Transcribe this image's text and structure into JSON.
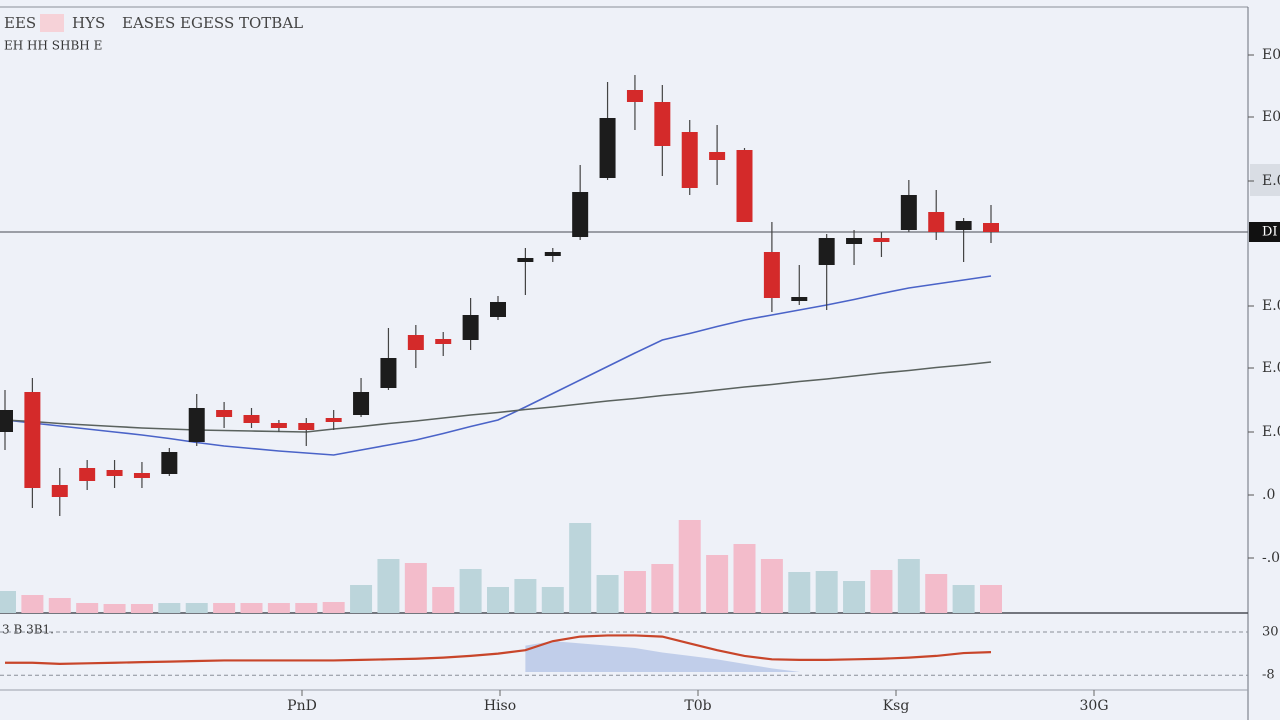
{
  "chart_data": {
    "type": "candlestick",
    "header": [
      "EES",
      "HYS",
      "EASES EGESS TOTBAL"
    ],
    "subheader": "EH HH SHBH E",
    "up_color": "#1c1c1c",
    "down_color": "#d42a2a",
    "volume_up_color": "#bcd5db",
    "volume_down_color": "#f3bccb",
    "ylim": [
      0,
      120
    ],
    "yticks": [
      {
        "value": 109,
        "label": "E0"
      },
      {
        "value": 96.6,
        "label": "E0"
      },
      {
        "value": 83.8,
        "label": "E.0"
      },
      {
        "value": 58.8,
        "label": "E.0"
      },
      {
        "value": 46.4,
        "label": "E.0"
      },
      {
        "value": 33.6,
        "label": "E.0"
      },
      {
        "value": 21,
        "label": ".0"
      },
      {
        "value": 8.4,
        "label": "-.0"
      }
    ],
    "price_line": {
      "value": 73.6,
      "label": "DI"
    },
    "candles": [
      {
        "open": 33.6,
        "high": 42,
        "low": 30,
        "close": 38
      },
      {
        "open": 41.6,
        "high": 44.4,
        "low": 18.4,
        "close": 22.4
      },
      {
        "open": 23,
        "high": 26.4,
        "low": 16.8,
        "close": 20.6
      },
      {
        "open": 26.4,
        "high": 28,
        "low": 22,
        "close": 23.8
      },
      {
        "open": 26,
        "high": 28,
        "low": 22.4,
        "close": 24.8
      },
      {
        "open": 25.4,
        "high": 27.6,
        "low": 22.4,
        "close": 24.4
      },
      {
        "open": 25.2,
        "high": 30.4,
        "low": 24.8,
        "close": 29.6
      },
      {
        "open": 31.6,
        "high": 41.2,
        "low": 30.8,
        "close": 38.4
      },
      {
        "open": 38,
        "high": 39.6,
        "low": 34.4,
        "close": 36.6
      },
      {
        "open": 37,
        "high": 38.4,
        "low": 34.4,
        "close": 35.4
      },
      {
        "open": 35.4,
        "high": 36,
        "low": 33.6,
        "close": 34.4
      },
      {
        "open": 35.4,
        "high": 36.4,
        "low": 30.8,
        "close": 34
      },
      {
        "open": 36.4,
        "high": 38,
        "low": 34,
        "close": 35.6
      },
      {
        "open": 37,
        "high": 44.4,
        "low": 36.6,
        "close": 41.6
      },
      {
        "open": 42.4,
        "high": 54.4,
        "low": 42,
        "close": 48.4
      },
      {
        "open": 53,
        "high": 55,
        "low": 46.4,
        "close": 50
      },
      {
        "open": 52.2,
        "high": 53.6,
        "low": 48.8,
        "close": 51.2
      },
      {
        "open": 52,
        "high": 60.4,
        "low": 50,
        "close": 57
      },
      {
        "open": 56.6,
        "high": 60.8,
        "low": 56,
        "close": 59.6
      },
      {
        "open": 67.6,
        "high": 70.4,
        "low": 61,
        "close": 68.4
      },
      {
        "open": 68.8,
        "high": 70.4,
        "low": 67.6,
        "close": 69.6
      },
      {
        "open": 72.6,
        "high": 87,
        "low": 72,
        "close": 81.6
      },
      {
        "open": 84.4,
        "high": 103.6,
        "low": 84,
        "close": 96.4
      },
      {
        "open": 102,
        "high": 105,
        "low": 94,
        "close": 99.6
      },
      {
        "open": 99.6,
        "high": 103,
        "low": 84.8,
        "close": 90.8
      },
      {
        "open": 93.6,
        "high": 96,
        "low": 81,
        "close": 82.4
      },
      {
        "open": 89.6,
        "high": 95,
        "low": 83,
        "close": 88
      },
      {
        "open": 90,
        "high": 90.4,
        "low": 75.6,
        "close": 75.6
      },
      {
        "open": 69.6,
        "high": 75.6,
        "low": 57.6,
        "close": 60.4
      },
      {
        "open": 59.8,
        "high": 67,
        "low": 59,
        "close": 60.6
      },
      {
        "open": 67,
        "high": 73.2,
        "low": 58,
        "close": 72.4
      },
      {
        "open": 71.2,
        "high": 74,
        "low": 67,
        "close": 72.4
      },
      {
        "open": 72.4,
        "high": 73.6,
        "low": 68.6,
        "close": 71.6
      },
      {
        "open": 74,
        "high": 84,
        "low": 73.6,
        "close": 81
      },
      {
        "open": 77.6,
        "high": 82,
        "low": 72,
        "close": 73.6
      },
      {
        "open": 74,
        "high": 76.4,
        "low": 67.6,
        "close": 75.8
      },
      {
        "open": 75.4,
        "high": 79,
        "low": 71.4,
        "close": 73.6
      }
    ],
    "volume_lim": [
      0,
      100
    ],
    "volume": [
      22,
      18,
      15,
      10,
      9,
      9,
      10,
      10,
      10,
      10,
      10,
      10,
      11,
      28,
      54,
      50,
      26,
      44,
      26,
      34,
      26,
      90,
      38,
      42,
      49,
      93,
      58,
      69,
      54,
      41,
      42,
      32,
      43,
      54,
      39,
      28,
      28
    ],
    "series": [
      {
        "color": "#4a63c8",
        "values": [
          36,
          35.4,
          34.8,
          34.2,
          33.6,
          33,
          32.3,
          31.5,
          30.8,
          30.3,
          29.8,
          29.4,
          29,
          30,
          31,
          32,
          33.3,
          34.7,
          36,
          38.6,
          41.3,
          44,
          46.7,
          49.4,
          52,
          53.3,
          54.7,
          56,
          57,
          58,
          59,
          60.1,
          61.3,
          62.4,
          63.2,
          64,
          64.8
        ]
      },
      {
        "color": "#5a625e",
        "values": [
          36,
          35.7,
          35.3,
          35,
          34.7,
          34.4,
          34.2,
          34,
          33.9,
          33.8,
          33.7,
          33.6,
          34.2,
          34.7,
          35.3,
          35.8,
          36.4,
          37,
          37.5,
          38.1,
          38.6,
          39.2,
          39.8,
          40.3,
          40.9,
          41.4,
          42,
          42.6,
          43.1,
          43.7,
          44.2,
          44.8,
          45.4,
          45.9,
          46.5,
          47,
          47.6
        ]
      }
    ],
    "oscillator": {
      "label": "3 B 3B1.",
      "ylim": [
        -21,
        45
      ],
      "yticks": [
        30,
        -8
      ],
      "line": {
        "color": "#c8452a",
        "values": [
          3,
          3,
          2,
          2.5,
          3,
          3.5,
          4,
          4.5,
          5,
          5,
          5,
          5,
          5,
          5.5,
          6,
          6.5,
          7.5,
          9,
          11,
          14,
          22,
          26,
          27,
          27,
          26,
          20,
          14,
          9,
          6,
          5.5,
          5.5,
          6,
          6.5,
          7.5,
          9,
          11.5,
          12.3
        ]
      },
      "area": {
        "color": "#b8c8e8",
        "values": [
          null,
          null,
          null,
          null,
          null,
          null,
          null,
          null,
          null,
          null,
          null,
          null,
          null,
          null,
          null,
          null,
          null,
          null,
          null,
          18,
          22,
          20,
          18,
          16,
          12,
          9,
          6,
          2,
          -2,
          -5,
          null,
          null,
          null,
          null,
          null,
          null,
          null
        ]
      }
    },
    "x_labels": [
      "PnD",
      "Hiso",
      "T0b",
      "Ksg",
      "30G"
    ]
  }
}
